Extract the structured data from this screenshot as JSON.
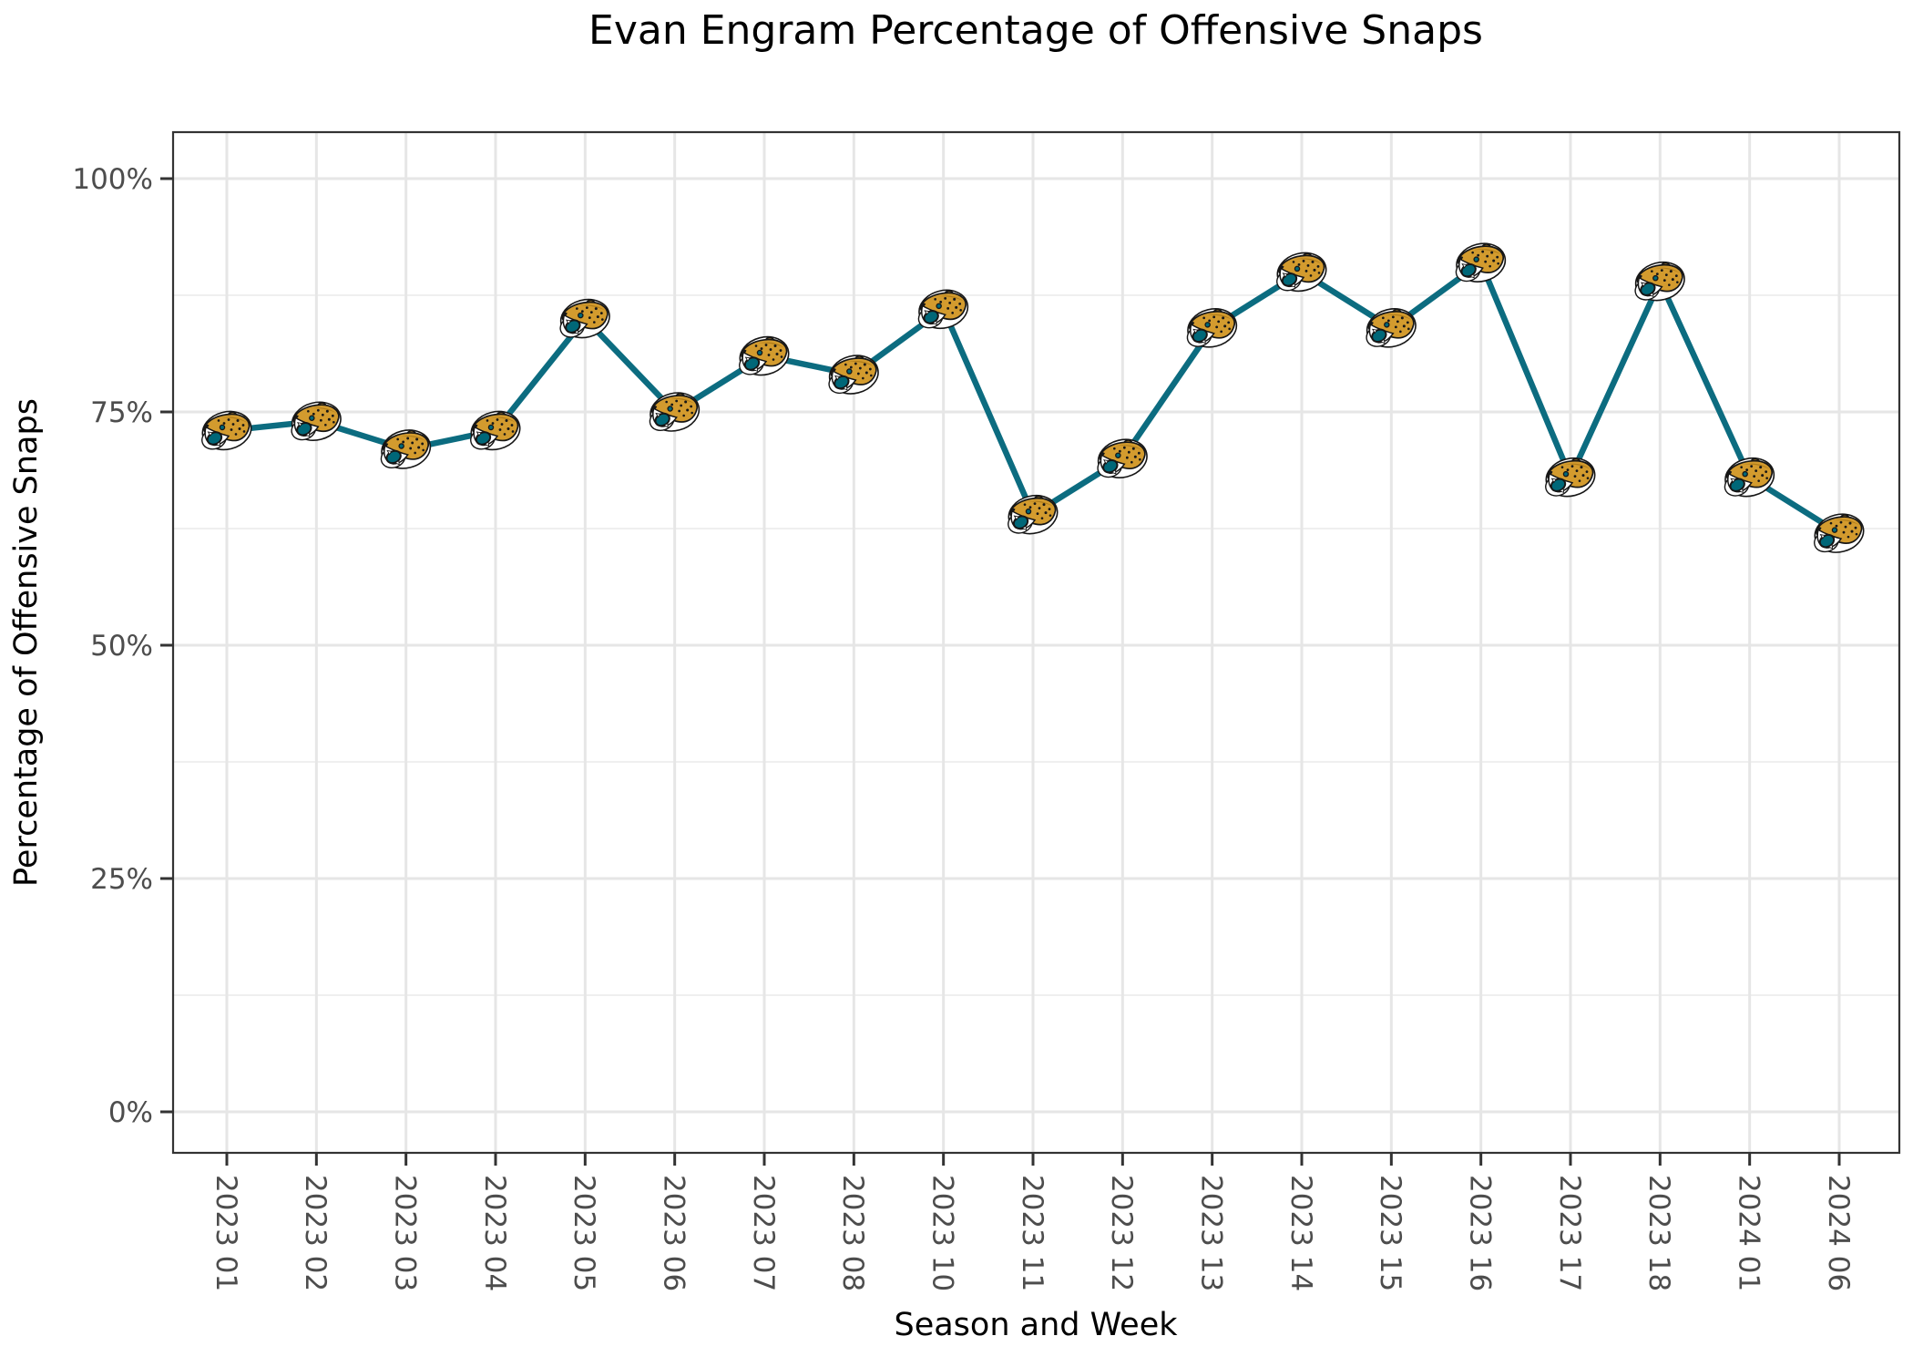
{
  "chart_data": {
    "type": "line",
    "title": "Evan Engram Percentage of Offensive Snaps",
    "xlabel": "Season and Week",
    "ylabel": "Percentage of Offensive Snaps",
    "categories": [
      "2023 01",
      "2023 02",
      "2023 03",
      "2023 04",
      "2023 05",
      "2023 06",
      "2023 07",
      "2023 08",
      "2023 10",
      "2023 11",
      "2023 12",
      "2023 13",
      "2023 14",
      "2023 15",
      "2023 16",
      "2023 17",
      "2023 18",
      "2024 01",
      "2024 06"
    ],
    "values": [
      73,
      74,
      71,
      73,
      85,
      75,
      81,
      79,
      86,
      64,
      70,
      84,
      90,
      84,
      91,
      68,
      89,
      68,
      62
    ],
    "ylim": [
      0,
      100
    ],
    "ytick_values": [
      0,
      25,
      50,
      75,
      100
    ],
    "ytick_labels": [
      "0%",
      "25%",
      "50%",
      "75%",
      "100%"
    ],
    "yminor_values": [
      12.5,
      37.5,
      62.5,
      87.5
    ],
    "grid": "on",
    "legend": "none",
    "marker": "jaguars-logo",
    "colors": {
      "line": "#0c6c80",
      "grid_major": "#e6e6e6",
      "grid_minor": "#efefef",
      "panel_border": "#333333",
      "tick": "#333333",
      "tick_text": "#4d4d4d",
      "logo_gold": "#d39b2e",
      "logo_gold_dark": "#a97514",
      "logo_teal": "#006778",
      "logo_white": "#ffffff",
      "logo_black": "#161616"
    }
  }
}
